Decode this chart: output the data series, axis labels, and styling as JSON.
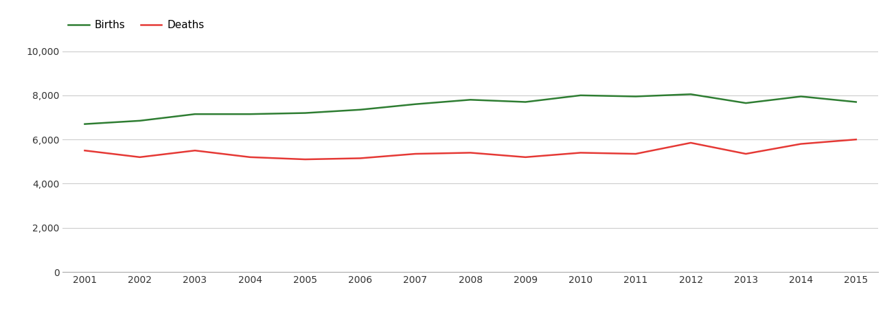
{
  "years": [
    2001,
    2002,
    2003,
    2004,
    2005,
    2006,
    2007,
    2008,
    2009,
    2010,
    2011,
    2012,
    2013,
    2014,
    2015
  ],
  "births": [
    6700,
    6850,
    7150,
    7150,
    7200,
    7350,
    7600,
    7800,
    7700,
    8000,
    7950,
    8050,
    7650,
    7950,
    7700
  ],
  "deaths": [
    5500,
    5200,
    5500,
    5200,
    5100,
    5150,
    5350,
    5400,
    5200,
    5400,
    5350,
    5850,
    5350,
    5800,
    6000
  ],
  "births_color": "#2e7d32",
  "deaths_color": "#e53935",
  "background_color": "#ffffff",
  "grid_color": "#cccccc",
  "line_width": 1.8,
  "ylim": [
    0,
    10500
  ],
  "yticks": [
    0,
    2000,
    4000,
    6000,
    8000,
    10000
  ],
  "legend_labels": [
    "Births",
    "Deaths"
  ],
  "xlabel": "",
  "ylabel": ""
}
